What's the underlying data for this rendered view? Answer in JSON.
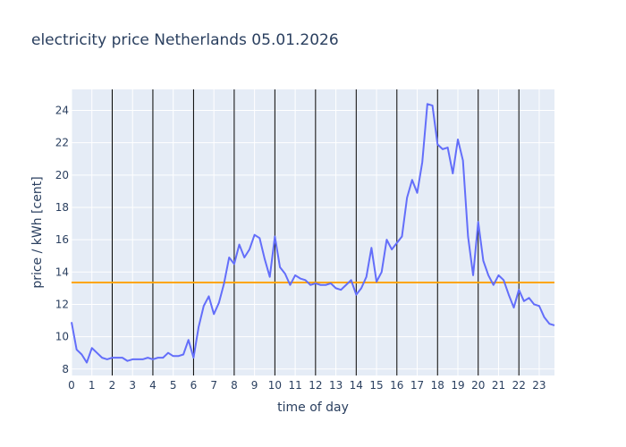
{
  "chart_data": {
    "type": "line",
    "title": "electricity price Netherlands 05.01.2026",
    "xlabel": "time of day",
    "ylabel": "price / kWh [cent]",
    "xlim": [
      0,
      23.75
    ],
    "ylim": [
      7.6,
      25.3
    ],
    "x_ticks": [
      0,
      1,
      2,
      3,
      4,
      5,
      6,
      7,
      8,
      9,
      10,
      11,
      12,
      13,
      14,
      15,
      16,
      17,
      18,
      19,
      20,
      21,
      22,
      23
    ],
    "y_ticks": [
      8,
      10,
      12,
      14,
      16,
      18,
      20,
      22,
      24
    ],
    "grid": true,
    "legend": "none",
    "colors": {
      "plot_bg": "#e5ecf6",
      "grid": "#ffffff",
      "series_line": "#636efa",
      "mean_line": "#ffa500",
      "vertical_markers": "#000000",
      "text": "#2a3f5f"
    },
    "vertical_markers": [
      2,
      4,
      6,
      8,
      10,
      12,
      14,
      16,
      18,
      20,
      22
    ],
    "reference_lines": [
      {
        "y": 13.35,
        "color": "#ffa500"
      }
    ],
    "series": [
      {
        "color": "#636efa",
        "x": [
          0,
          0.25,
          0.5,
          0.75,
          1,
          1.25,
          1.5,
          1.75,
          2,
          2.25,
          2.5,
          2.75,
          3,
          3.25,
          3.5,
          3.75,
          4,
          4.25,
          4.5,
          4.75,
          5,
          5.25,
          5.5,
          5.75,
          6,
          6.25,
          6.5,
          6.75,
          7,
          7.25,
          7.5,
          7.75,
          8,
          8.25,
          8.5,
          8.75,
          9,
          9.25,
          9.5,
          9.75,
          10,
          10.25,
          10.5,
          10.75,
          11,
          11.25,
          11.5,
          11.75,
          12,
          12.25,
          12.5,
          12.75,
          13,
          13.25,
          13.5,
          13.75,
          14,
          14.25,
          14.5,
          14.75,
          15,
          15.25,
          15.5,
          15.75,
          16,
          16.25,
          16.5,
          16.75,
          17,
          17.25,
          17.5,
          17.75,
          18,
          18.25,
          18.5,
          18.75,
          19,
          19.25,
          19.5,
          19.75,
          20,
          20.25,
          20.5,
          20.75,
          21,
          21.25,
          21.5,
          21.75,
          22,
          22.25,
          22.5,
          22.75,
          23,
          23.25,
          23.5,
          23.75
        ],
        "y": [
          10.9,
          9.2,
          8.9,
          8.4,
          9.3,
          9.0,
          8.7,
          8.6,
          8.7,
          8.7,
          8.7,
          8.5,
          8.6,
          8.6,
          8.6,
          8.7,
          8.6,
          8.7,
          8.7,
          9.0,
          8.8,
          8.8,
          8.9,
          9.8,
          8.7,
          10.6,
          11.9,
          12.5,
          11.4,
          12.1,
          13.3,
          14.9,
          14.5,
          15.7,
          14.9,
          15.4,
          16.3,
          16.1,
          14.8,
          13.7,
          16.2,
          14.3,
          13.9,
          13.2,
          13.8,
          13.6,
          13.5,
          13.2,
          13.3,
          13.2,
          13.2,
          13.3,
          13.0,
          12.9,
          13.2,
          13.5,
          12.6,
          13.0,
          13.7,
          15.5,
          13.4,
          14.0,
          16.0,
          15.4,
          15.8,
          16.2,
          18.6,
          19.7,
          18.9,
          20.8,
          24.4,
          24.3,
          21.9,
          21.6,
          21.7,
          20.1,
          22.2,
          20.9,
          16.2,
          13.8,
          17.1,
          14.7,
          13.8,
          13.2,
          13.8,
          13.5,
          12.6,
          11.8,
          12.9,
          12.2,
          12.4,
          12.0,
          11.9,
          11.2,
          10.8,
          10.7
        ]
      }
    ]
  }
}
